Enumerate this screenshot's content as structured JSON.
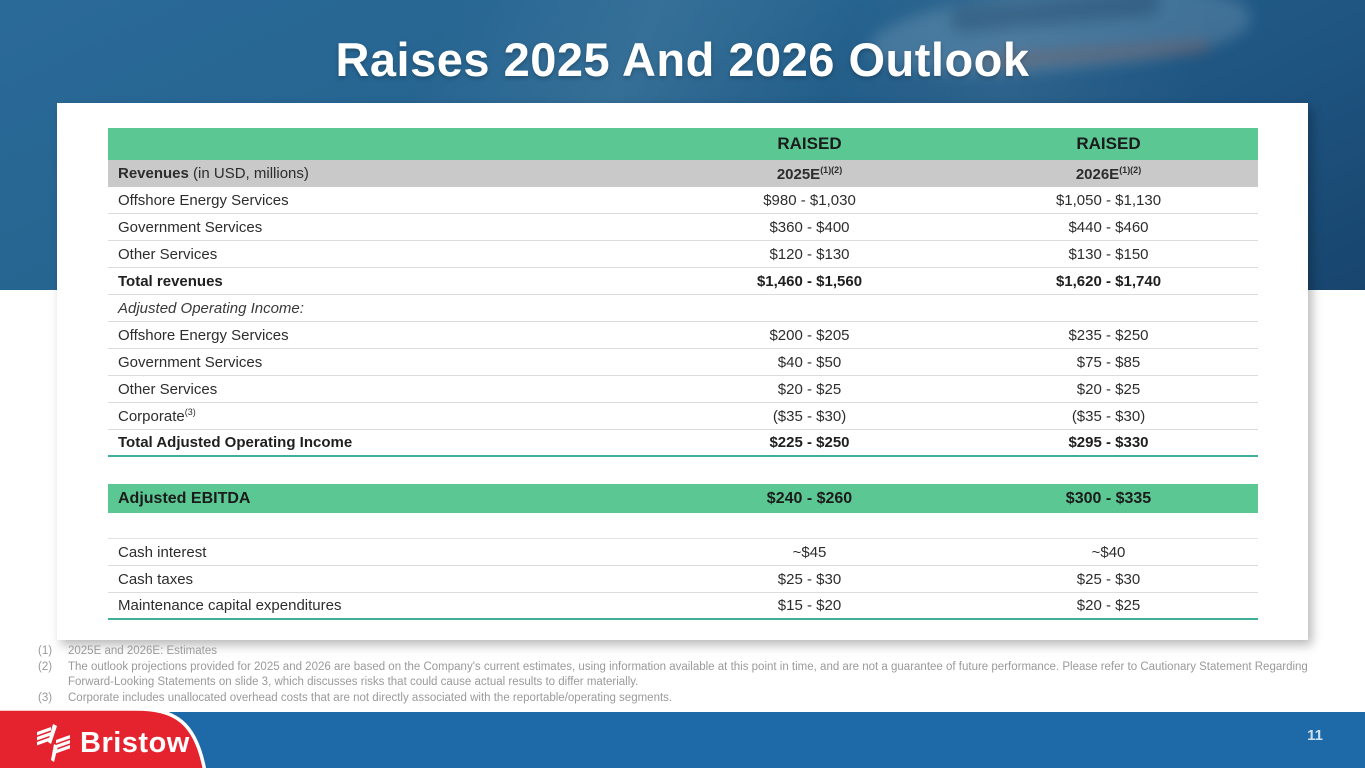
{
  "slide": {
    "title": "Raises 2025 And 2026 Outlook",
    "page_number": "11"
  },
  "brand": {
    "name": "Bristow"
  },
  "colors": {
    "header_green": "#5BC894",
    "subheader_gray": "#C9C9C9",
    "accent_teal": "#3FAE9C",
    "footer_blue": "#1E6AA9",
    "brand_red": "#E5232E"
  },
  "table": {
    "columns": {
      "raised_2025": "RAISED",
      "raised_2026": "RAISED"
    },
    "subheader": {
      "label_main": "Revenues",
      "label_note": " (in USD, millions)",
      "col_2025": "2025E",
      "col_2025_sup": "(1)(2)",
      "col_2026": "2026E",
      "col_2026_sup": "(1)(2)"
    },
    "rows": [
      {
        "label": "Offshore Energy Services",
        "v2025": "$980 - $1,030",
        "v2026": "$1,050 - $1,130",
        "style": "normal"
      },
      {
        "label": "Government Services",
        "v2025": "$360 - $400",
        "v2026": "$440 - $460",
        "style": "normal"
      },
      {
        "label": "Other Services",
        "v2025": "$120 - $130",
        "v2026": "$130 - $150",
        "style": "normal"
      },
      {
        "label": "Total revenues",
        "v2025": "$1,460 - $1,560",
        "v2026": "$1,620 - $1,740",
        "style": "bold"
      },
      {
        "label": "Adjusted Operating Income:",
        "v2025": "",
        "v2026": "",
        "style": "section"
      },
      {
        "label": "Offshore Energy Services",
        "v2025": "$200 - $205",
        "v2026": "$235 - $250",
        "style": "normal"
      },
      {
        "label": "Government Services",
        "v2025": "$40 - $50",
        "v2026": "$75 - $85",
        "style": "normal"
      },
      {
        "label": "Other Services",
        "v2025": "$20 - $25",
        "v2026": "$20 - $25",
        "style": "normal"
      },
      {
        "label": "Corporate",
        "label_sup": "(3)",
        "v2025": "($35 - $30)",
        "v2026": "($35 - $30)",
        "style": "normal"
      },
      {
        "label": "Total Adjusted Operating Income",
        "v2025": "$225 - $250",
        "v2026": "$295 - $330",
        "style": "bold teal-under"
      },
      {
        "style": "spacer"
      },
      {
        "label": "Adjusted EBITDA",
        "v2025": "$240 - $260",
        "v2026": "$300 - $335",
        "style": "ebitda"
      },
      {
        "style": "spacer-line"
      },
      {
        "label": "Cash interest",
        "v2025": "~$45",
        "v2026": "~$40",
        "style": "normal"
      },
      {
        "label": "Cash taxes",
        "v2025": "$25 - $30",
        "v2026": "$25 - $30",
        "style": "normal"
      },
      {
        "label": "Maintenance capital expenditures",
        "v2025": "$15 - $20",
        "v2026": "$20 - $25",
        "style": "normal teal-under"
      }
    ]
  },
  "footnotes": [
    {
      "num": "(1)",
      "text": "2025E and 2026E: Estimates"
    },
    {
      "num": "(2)",
      "text": "The outlook projections provided for 2025 and 2026 are based on the Company's current estimates, using information available at this point in time, and are not a guarantee of future performance. Please refer to Cautionary Statement Regarding Forward-Looking Statements on slide 3, which discusses risks that could cause actual results to differ materially."
    },
    {
      "num": "(3)",
      "text": "Corporate includes unallocated overhead costs that are not directly associated with the reportable/operating segments."
    }
  ]
}
